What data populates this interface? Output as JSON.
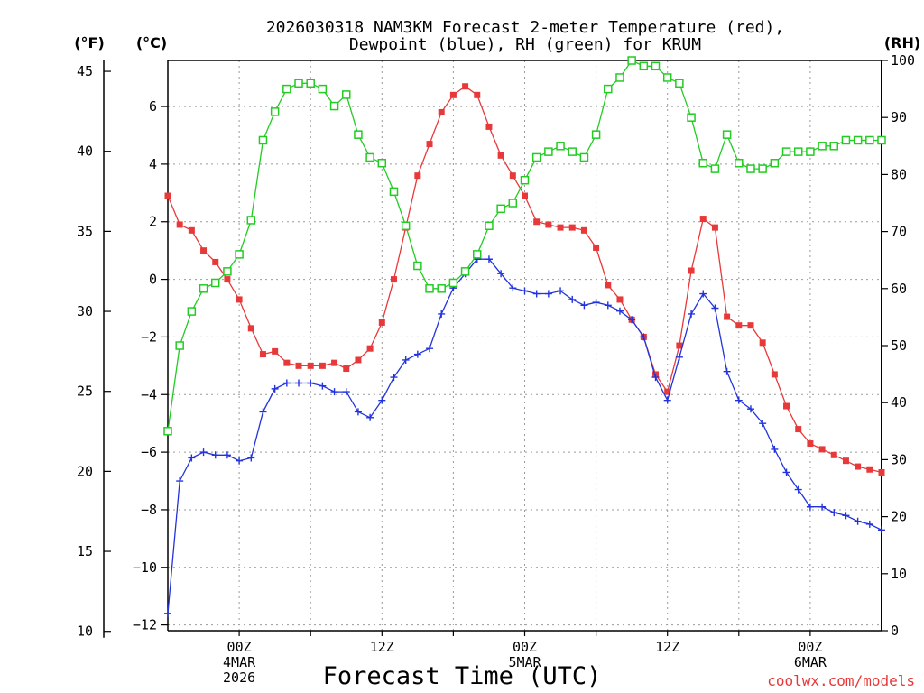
{
  "chart_data": {
    "type": "line",
    "title_lines": [
      "2026030318 NAM3KM Forecast 2-meter Temperature (red),",
      "Dewpoint (blue), RH (green) for KRUM"
    ],
    "xlabel": "Forecast Time (UTC)",
    "credit": "coolwx.com/models",
    "x_unit": "forecast hour (0 = 2026-03-03 18Z)",
    "xlim": [
      0,
      60
    ],
    "x_ticks": [
      {
        "x": 6,
        "lines": [
          "00Z",
          "4MAR",
          "2026"
        ]
      },
      {
        "x": 18,
        "lines": [
          "12Z"
        ]
      },
      {
        "x": 30,
        "lines": [
          "00Z",
          "5MAR"
        ]
      },
      {
        "x": 42,
        "lines": [
          "12Z"
        ]
      },
      {
        "x": 54,
        "lines": [
          "00Z",
          "6MAR"
        ]
      }
    ],
    "axes": {
      "fahrenheit": {
        "label": "(°F)",
        "ticks": [
          "10",
          "15",
          "20",
          "25",
          "30",
          "35",
          "40",
          "45"
        ],
        "values": [
          10,
          15,
          20,
          25,
          30,
          35,
          40,
          45
        ]
      },
      "celsius": {
        "label": "(°C)",
        "ticks": [
          "−12",
          "−10",
          "−8",
          "−6",
          "−4",
          "−2",
          "0",
          "2",
          "4",
          "6"
        ],
        "values": [
          -12,
          -10,
          -8,
          -6,
          -4,
          -2,
          0,
          2,
          4,
          6
        ],
        "ylim": [
          -12.2,
          7.6
        ]
      },
      "rh": {
        "label": "(RH)",
        "ticks": [
          "0",
          "10",
          "20",
          "30",
          "40",
          "50",
          "60",
          "70",
          "80",
          "90",
          "100"
        ],
        "values": [
          0,
          10,
          20,
          30,
          40,
          50,
          60,
          70,
          80,
          90,
          100
        ],
        "ylim": [
          0,
          100
        ]
      }
    },
    "x": [
      0,
      1,
      2,
      3,
      4,
      5,
      6,
      7,
      8,
      9,
      10,
      11,
      12,
      13,
      14,
      15,
      16,
      17,
      18,
      19,
      20,
      21,
      22,
      23,
      24,
      25,
      26,
      27,
      28,
      29,
      30,
      31,
      32,
      33,
      34,
      35,
      36,
      37,
      38,
      39,
      40,
      41,
      42,
      43,
      44,
      45,
      46,
      47,
      48,
      49,
      50,
      51,
      52,
      53,
      54,
      55,
      56,
      57,
      58,
      59,
      60
    ],
    "series": [
      {
        "name": "Temperature",
        "unit": "°C",
        "color": "#e8393a",
        "marker": "filled-square",
        "values": [
          2.9,
          1.9,
          1.7,
          1.0,
          0.6,
          0.0,
          -0.7,
          -1.7,
          -2.6,
          -2.5,
          -2.9,
          -3.0,
          -3.0,
          -3.0,
          -2.9,
          -3.1,
          -2.8,
          -2.4,
          -1.5,
          0.0,
          1.8,
          3.6,
          4.7,
          5.8,
          6.4,
          6.7,
          6.4,
          5.3,
          4.3,
          3.6,
          2.9,
          2.0,
          1.9,
          1.8,
          1.8,
          1.7,
          1.1,
          -0.2,
          -0.7,
          -1.4,
          -2.0,
          -3.3,
          -3.9,
          -2.3,
          0.3,
          2.1,
          1.8,
          -1.3,
          -1.6,
          -1.6,
          -2.2,
          -3.3,
          -4.4,
          -5.2,
          -5.7,
          -5.9,
          -6.1,
          -6.3,
          -6.5,
          -6.6,
          -6.7
        ]
      },
      {
        "name": "Dewpoint",
        "unit": "°C",
        "color": "#2233dd",
        "marker": "plus",
        "values": [
          -11.6,
          -7.0,
          -6.2,
          -6.0,
          -6.1,
          -6.1,
          -6.3,
          -6.2,
          -4.6,
          -3.8,
          -3.6,
          -3.6,
          -3.6,
          -3.7,
          -3.9,
          -3.9,
          -4.6,
          -4.8,
          -4.2,
          -3.4,
          -2.8,
          -2.6,
          -2.4,
          -1.2,
          -0.3,
          0.2,
          0.7,
          0.7,
          0.2,
          -0.3,
          -0.4,
          -0.5,
          -0.5,
          -0.4,
          -0.7,
          -0.9,
          -0.8,
          -0.9,
          -1.1,
          -1.4,
          -2.0,
          -3.4,
          -4.2,
          -2.7,
          -1.2,
          -0.5,
          -1.0,
          -3.2,
          -4.2,
          -4.5,
          -5.0,
          -5.9,
          -6.7,
          -7.3,
          -7.9,
          -7.9,
          -8.1,
          -8.2,
          -8.4,
          -8.5,
          -8.7
        ]
      },
      {
        "name": "RH",
        "unit": "%",
        "color": "#22cc22",
        "marker": "open-square",
        "values": [
          35,
          50,
          56,
          60,
          61,
          63,
          66,
          72,
          86,
          91,
          95,
          96,
          96,
          95,
          92,
          94,
          87,
          83,
          82,
          77,
          71,
          64,
          60,
          60,
          61,
          63,
          66,
          71,
          74,
          75,
          79,
          83,
          84,
          85,
          84,
          83,
          87,
          95,
          97,
          100,
          99,
          99,
          97,
          96,
          90,
          82,
          81,
          87,
          82,
          81,
          81,
          82,
          84,
          84,
          84,
          85,
          85,
          86,
          86,
          86,
          86
        ]
      }
    ]
  }
}
